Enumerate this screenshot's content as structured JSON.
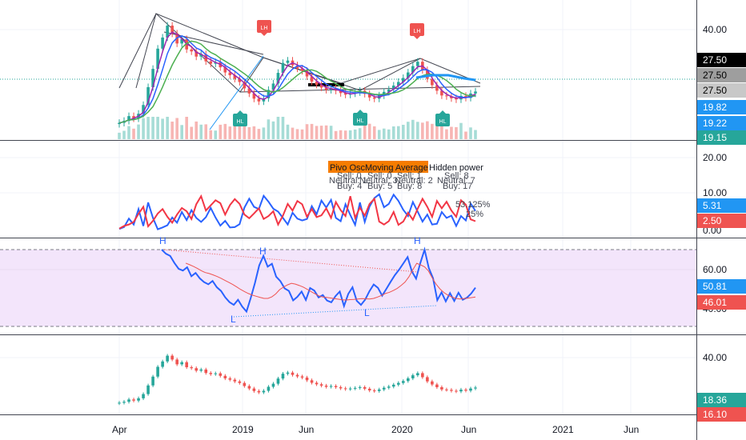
{
  "chart_data": [
    {
      "type": "candlestick",
      "pane": "price",
      "y_ticks": [
        "40.00"
      ],
      "price_labels": [
        {
          "text": "27.50",
          "bg": "#000000",
          "fg": "#ffffff"
        },
        {
          "text": "27.50",
          "bg": "#9e9e9e",
          "fg": "#000000"
        },
        {
          "text": "27.50",
          "bg": "#c8c8c8",
          "fg": "#000000"
        },
        {
          "text": "19.82",
          "bg": "#2196f3",
          "fg": "#ffffff"
        },
        {
          "text": "19.22",
          "bg": "#2196f3",
          "fg": "#ffffff"
        },
        {
          "text": "19.15",
          "bg": "#26a69a",
          "fg": "#ffffff"
        }
      ],
      "markers": [
        {
          "label": "LH",
          "color": "#ef5350",
          "kind": "sell"
        },
        {
          "label": "LH",
          "color": "#ef5350",
          "kind": "sell"
        },
        {
          "label": "HL",
          "color": "#26a69a",
          "kind": "buy"
        },
        {
          "label": "HL",
          "color": "#26a69a",
          "kind": "buy"
        },
        {
          "label": "HL",
          "color": "#26a69a",
          "kind": "buy"
        }
      ],
      "close": [
        16.5,
        17.0,
        18.2,
        17.6,
        18.8,
        21.0,
        25.5,
        30.1,
        35.2,
        38.0,
        41.0,
        39.0,
        36.5,
        37.6,
        35.0,
        34.5,
        33.2,
        33.8,
        32.0,
        31.4,
        31.8,
        30.5,
        29.2,
        28.5,
        27.6,
        26.8,
        25.2,
        23.9,
        22.6,
        21.9,
        22.7,
        24.8,
        26.4,
        29.1,
        31.6,
        32.2,
        31.0,
        30.2,
        29.6,
        28.2,
        26.9,
        26.1,
        25.4,
        24.8,
        25.2,
        24.6,
        24.0,
        23.6,
        23.9,
        24.2,
        24.6,
        23.8,
        22.9,
        22.6,
        23.4,
        24.3,
        24.9,
        25.9,
        26.8,
        27.8,
        29.2,
        30.8,
        31.9,
        29.8,
        27.6,
        26.0,
        24.6,
        23.4,
        23.2,
        22.7,
        22.4,
        23.3,
        22.8,
        23.9,
        24.4
      ]
    },
    {
      "type": "line",
      "pane": "oscillator",
      "y_ticks": [
        "20.00",
        "10.00",
        "0.00"
      ],
      "value_labels": [
        {
          "text": "5.31",
          "bg": "#2196f3"
        },
        {
          "text": "2.50",
          "bg": "#ef5350"
        }
      ],
      "annotations": [
        "Pivo Osc",
        "Moving Average",
        "Hidden power",
        "Sell: 0",
        "Sell: 0",
        "Sell: 1",
        "Sell: 8",
        "Neutral: 1",
        "Neutral: 3",
        "Neutral: 2",
        "Neutral: 7",
        "Buy: 4",
        "Buy: 5",
        "Buy: 8",
        "Buy: 17",
        "53.125%",
        "25%"
      ],
      "series": [
        {
          "color": "#2962ff",
          "values": [
            0.4,
            0.9,
            3.2,
            1.6,
            5.8,
            1.2,
            7.6,
            3.4,
            0.3,
            0.8,
            1.4,
            3.5,
            2.1,
            5.0,
            2.8,
            5.5,
            3.4,
            2.3,
            3.6,
            6.1,
            3.5,
            1.3,
            2.6,
            0.8,
            0.9,
            1.7,
            6.2,
            8.6,
            6.4,
            5.8,
            9.4,
            7.8,
            5.9,
            5.1,
            3.4,
            1.6,
            4.8,
            3.2,
            2.7,
            3.1,
            6.6,
            4.4,
            8.1,
            6.2,
            8.3,
            3.4,
            2.5,
            7.1,
            4.2,
            1.5,
            7.6,
            2.3,
            6.5,
            8.8,
            9.8,
            6.3,
            7.2,
            9.7,
            8.0,
            5.6,
            3.9,
            7.7,
            5.1,
            2.4,
            4.3,
            1.6,
            1.8,
            5.0,
            3.4,
            4.0,
            1.2,
            3.9,
            2.7,
            7.3,
            5.3
          ]
        },
        {
          "color": "#f23645",
          "values": [
            0.5,
            1.2,
            1.6,
            2.3,
            4.5,
            6.4,
            1.1,
            2.6,
            4.6,
            5.8,
            3.7,
            2.1,
            4.3,
            6.1,
            5.2,
            3.1,
            7.1,
            9.3,
            5.4,
            6.8,
            8.2,
            7.4,
            4.3,
            6.9,
            8.5,
            7.2,
            4.3,
            3.3,
            4.6,
            6.0,
            3.1,
            3.9,
            5.2,
            1.6,
            4.0,
            7.2,
            5.4,
            8.0,
            7.1,
            3.7,
            5.8,
            3.6,
            4.1,
            6.0,
            3.4,
            7.7,
            5.5,
            3.9,
            9.3,
            3.4,
            6.2,
            4.0,
            7.2,
            8.6,
            2.4,
            1.6,
            2.5,
            5.0,
            1.5,
            2.4,
            4.8,
            2.9,
            5.9,
            8.6,
            6.4,
            3.7,
            8.0,
            6.0,
            7.8,
            5.4,
            3.7,
            8.2,
            7.0,
            3.0,
            2.5
          ]
        }
      ]
    },
    {
      "type": "line",
      "pane": "rsi",
      "y_ticks": [
        "60.00",
        "40.00"
      ],
      "value_labels": [
        {
          "text": "50.81",
          "bg": "#2196f3"
        },
        {
          "text": "46.01",
          "bg": "#ef5350"
        }
      ],
      "pivot_labels": [
        "H",
        "H",
        "H",
        "L",
        "L"
      ],
      "series": [
        {
          "color": "#2962ff",
          "values": [
            70.2,
            68.1,
            67.0,
            63.4,
            60.4,
            59.5,
            61.2,
            56.6,
            58.3,
            55.5,
            53.6,
            52.5,
            54.2,
            51.0,
            49.1,
            45.8,
            43.4,
            42.0,
            44.6,
            41.1,
            38.6,
            45.5,
            53.2,
            62.1,
            67.0,
            61.5,
            63.0,
            56.4,
            54.1,
            50.4,
            49.1,
            44.3,
            46.1,
            48.8,
            44.5,
            50.6,
            49.3,
            45.8,
            47.0,
            44.2,
            43.3,
            46.5,
            48.8,
            41.4,
            47.6,
            51.0,
            44.1,
            42.0,
            44.7,
            49.0,
            52.4,
            50.7,
            46.7,
            50.2,
            53.8,
            57.2,
            60.0,
            63.2,
            66.4,
            59.1,
            55.4,
            63.4,
            70.2,
            60.8,
            55.6,
            44.4,
            48.4,
            43.8,
            48.0,
            44.0,
            48.2,
            44.6,
            45.7,
            47.8,
            50.8
          ]
        },
        {
          "color": "#ef5350",
          "values": [
            63.3,
            62.5,
            61.6,
            60.6,
            59.4,
            58.5,
            58.0,
            57.3,
            56.5,
            55.6,
            54.5,
            53.5,
            52.4,
            51.2,
            49.9,
            48.8,
            47.8,
            47.0,
            46.4,
            45.8,
            45.3,
            45.3,
            46.1,
            47.6,
            49.8,
            51.1,
            52.2,
            53.0,
            52.6,
            51.9,
            51.1,
            50.0,
            48.8,
            47.7,
            46.6,
            46.0,
            45.8,
            45.5,
            45.2,
            44.9,
            44.6,
            44.5,
            44.7,
            44.8,
            45.0,
            45.2,
            45.1,
            45.0,
            45.3,
            46.0,
            46.8,
            47.8,
            48.4,
            49.3,
            50.4,
            51.9,
            53.6,
            56.3,
            59.9,
            63.2,
            62.4,
            61.4,
            59.3,
            55.6,
            52.4,
            50.0,
            48.2,
            46.9,
            46.0,
            45.3,
            45.0,
            45.2,
            45.4,
            45.7,
            46.0
          ]
        }
      ]
    },
    {
      "type": "candlestick",
      "pane": "price-2",
      "y_ticks": [
        "40.00"
      ],
      "value_labels": [
        {
          "text": "18.36",
          "bg": "#26a69a"
        },
        {
          "text": "16.10",
          "bg": "#ef5350"
        }
      ]
    }
  ],
  "x_axis": {
    "ticks": [
      "Apr",
      "2019",
      "Jun",
      "2020",
      "Jun",
      "2021",
      "Jun"
    ]
  }
}
